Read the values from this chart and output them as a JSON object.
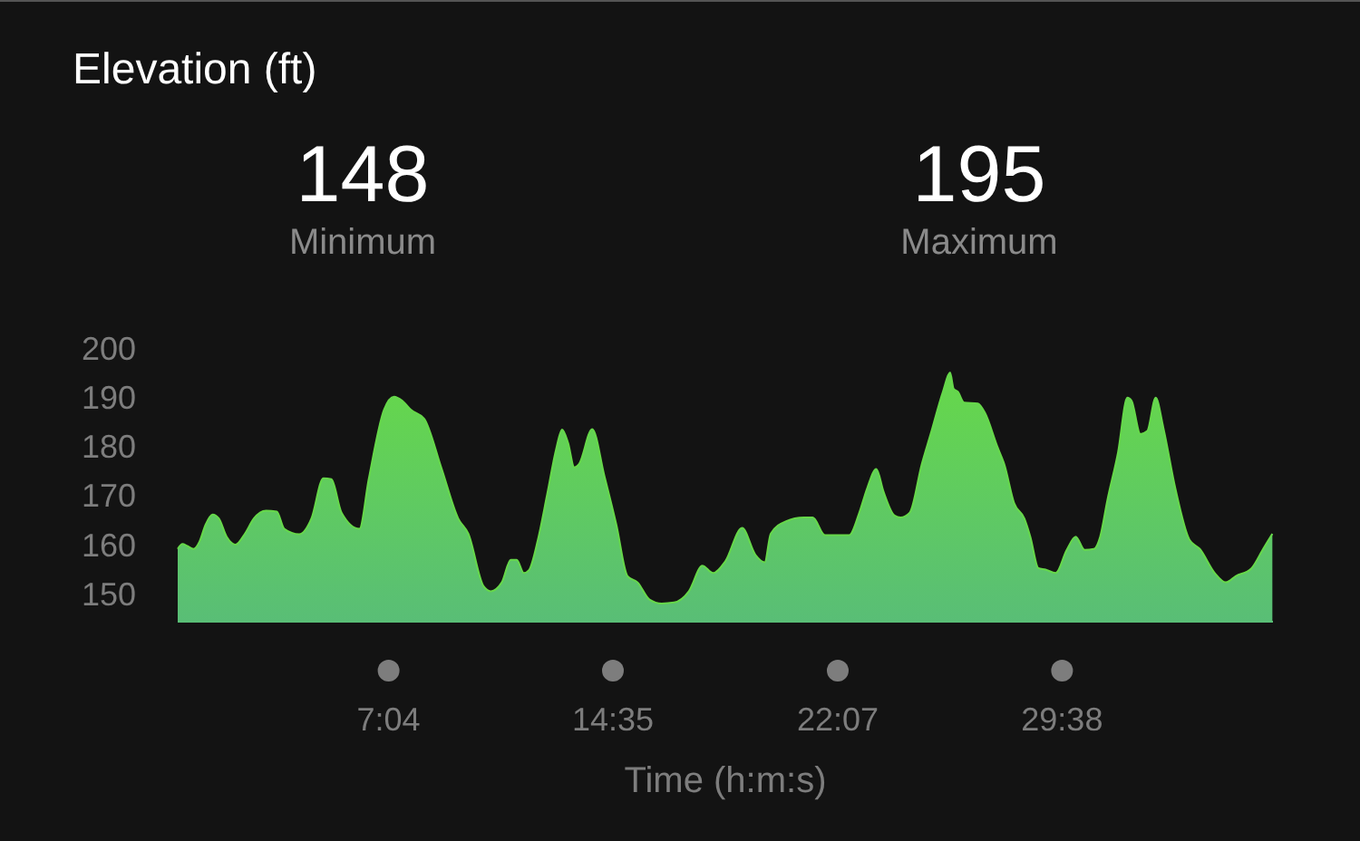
{
  "chart_data": {
    "type": "area",
    "title": "Elevation (ft)",
    "xlabel": "Time (h:m:s)",
    "annotations": [
      "148",
      "Minimum",
      "195",
      "Maximum"
    ],
    "xlim": [
      0,
      36.7
    ],
    "ylim": [
      144.3,
      200
    ],
    "xticks": [
      {
        "value": 7.067,
        "label": "7:04"
      },
      {
        "value": 14.583,
        "label": "14:35"
      },
      {
        "value": 22.117,
        "label": "22:07"
      },
      {
        "value": 29.633,
        "label": "29:38"
      }
    ],
    "yticks": [
      150,
      160,
      170,
      180,
      190,
      200
    ],
    "grid": false,
    "series": [
      {
        "color": "#66d84a",
        "x": [
          0,
          0.16,
          0.32,
          0.53,
          0.73,
          0.93,
          1.17,
          1.38,
          1.64,
          1.94,
          2.25,
          2.55,
          2.96,
          3.32,
          3.57,
          4.07,
          4.48,
          4.88,
          5.15,
          5.49,
          6.09,
          6.4,
          6.91,
          7.25,
          7.52,
          7.82,
          8.26,
          8.83,
          9.4,
          9.74,
          10.25,
          10.49,
          10.86,
          11.16,
          11.36,
          11.6,
          11.77,
          12.07,
          12.38,
          12.68,
          12.88,
          13.08,
          13.29,
          13.44,
          13.89,
          14.3,
          14.7,
          15.07,
          15.41,
          15.81,
          16.22,
          16.63,
          17.13,
          17.58,
          17.94,
          18.35,
          18.91,
          19.36,
          19.67,
          19.87,
          20.37,
          20.98,
          21.28,
          21.69,
          22.5,
          22.84,
          23.1,
          23.41,
          23.65,
          24.02,
          24.22,
          24.53,
          24.93,
          25.23,
          25.64,
          25.88,
          26,
          26.14,
          26.35,
          26.81,
          27.05,
          27.46,
          27.7,
          28.03,
          28.37,
          28.57,
          28.84,
          29.08,
          29.42,
          29.79,
          30.09,
          30.39,
          30.7,
          30.91,
          31.15,
          31.51,
          31.82,
          31.96,
          32.26,
          32.49,
          32.77,
          33.03,
          33.43,
          33.9,
          34.25,
          34.75,
          35.12,
          35.46,
          35.97,
          36.37,
          36.68
        ],
        "values": [
          159.1,
          160.1,
          159.7,
          159.1,
          160.6,
          164,
          166.1,
          165.3,
          161.6,
          160,
          162.2,
          165.3,
          166.9,
          166.7,
          163.2,
          162.1,
          165.3,
          173.5,
          173.3,
          166.5,
          163.2,
          173.3,
          187.4,
          190.1,
          189.3,
          187.4,
          185.6,
          175.7,
          165.3,
          162.2,
          151.5,
          150.5,
          152.3,
          156.9,
          156.9,
          154.2,
          154.8,
          161,
          170.2,
          179.4,
          183.4,
          180.7,
          175.7,
          176.3,
          183.5,
          173.9,
          164,
          153.6,
          152.3,
          148.8,
          148,
          148.2,
          150.5,
          155.7,
          154.2,
          156.6,
          163.4,
          157.9,
          156.4,
          162.2,
          164.7,
          165.5,
          165.5,
          161.9,
          161.9,
          166.5,
          171.4,
          175.4,
          170.8,
          165.9,
          165.5,
          166.5,
          176.3,
          182.5,
          191.1,
          195,
          191.7,
          191.1,
          188.9,
          188.7,
          186.8,
          180,
          176.3,
          168.4,
          165.3,
          161.6,
          155.2,
          154.9,
          154.2,
          158.9,
          161.6,
          158.9,
          159.1,
          161.6,
          169,
          178.8,
          189.9,
          189.3,
          182.5,
          183.1,
          189.9,
          183.7,
          171.4,
          161,
          159.1,
          154.2,
          152.3,
          153.6,
          155.1,
          159.1,
          162.2
        ]
      }
    ]
  }
}
